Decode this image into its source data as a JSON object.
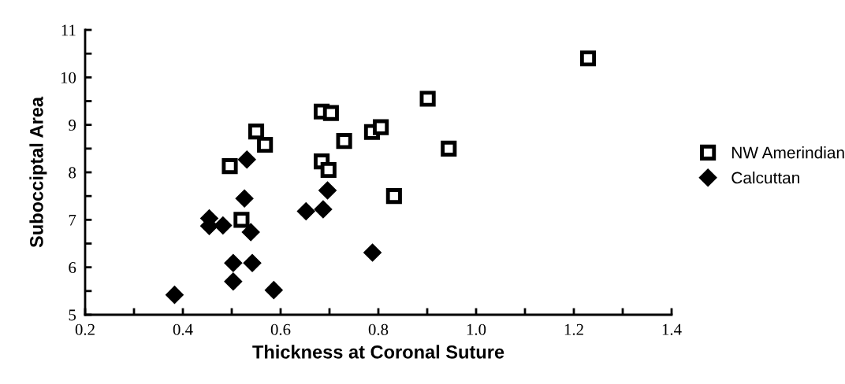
{
  "chart_data": {
    "type": "scatter",
    "xlabel": "Thickness at Coronal Suture",
    "ylabel": "Subocciptal Area",
    "xlim": [
      0.2,
      1.4
    ],
    "xticks": [
      {
        "value": 0.2,
        "label": "0.2"
      },
      {
        "value": 0.3,
        "label": null
      },
      {
        "value": 0.4,
        "label": "0.4"
      },
      {
        "value": 0.5,
        "label": null
      },
      {
        "value": 0.6,
        "label": "0.6"
      },
      {
        "value": 0.7,
        "label": null
      },
      {
        "value": 0.8,
        "label": "0.8"
      },
      {
        "value": 0.9,
        "label": null
      },
      {
        "value": 1.0,
        "label": "1.0"
      },
      {
        "value": 1.1,
        "label": null
      },
      {
        "value": 1.2,
        "label": "1.2"
      },
      {
        "value": 1.3,
        "label": null
      },
      {
        "value": 1.4,
        "label": "1.4"
      }
    ],
    "ylim": [
      5,
      11
    ],
    "yticks": [
      5,
      {
        "value": 5.5,
        "label": null
      },
      6,
      {
        "value": 6.5,
        "label": null
      },
      7,
      {
        "value": 7.5,
        "label": null
      },
      8,
      {
        "value": 8.5,
        "label": null
      },
      9,
      {
        "value": 9.5,
        "label": null
      },
      10,
      {
        "value": 10.5,
        "label": null
      },
      11
    ],
    "grid": false,
    "legend": "right",
    "series": [
      {
        "name": "NW Amerindian",
        "color": "#000000",
        "marker": "square",
        "x": [
          0.496,
          0.55,
          0.568,
          0.52,
          0.684,
          0.703,
          0.73,
          0.684,
          0.698,
          0.787,
          0.805,
          0.901,
          0.944,
          0.832,
          1.229
        ],
        "values": [
          8.13,
          8.86,
          8.58,
          7.0,
          9.28,
          9.25,
          8.66,
          8.23,
          8.05,
          8.85,
          8.95,
          9.55,
          8.5,
          7.5,
          10.4
        ]
      },
      {
        "name": "Calcuttan",
        "color": "#000000",
        "marker": "diamond",
        "x": [
          0.383,
          0.454,
          0.454,
          0.482,
          0.531,
          0.526,
          0.539,
          0.503,
          0.542,
          0.503,
          0.586,
          0.652,
          0.687,
          0.696,
          0.788
        ],
        "values": [
          5.42,
          7.03,
          6.87,
          6.88,
          8.27,
          7.45,
          6.74,
          6.09,
          6.09,
          5.7,
          5.52,
          7.18,
          7.22,
          7.62,
          6.31
        ]
      }
    ]
  }
}
